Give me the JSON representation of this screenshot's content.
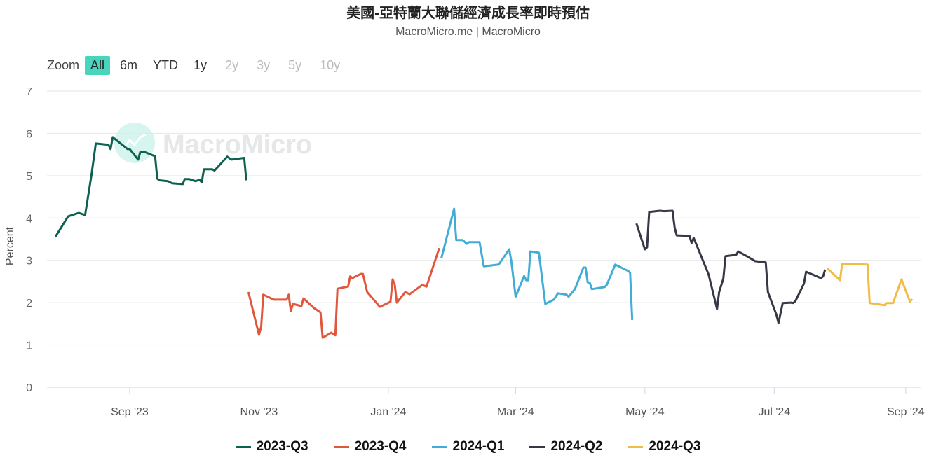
{
  "title": "美國-亞特蘭大聯儲經濟成長率即時預估",
  "subtitle": "MacroMicro.me | MacroMicro",
  "watermark": "MacroMicro",
  "zoom": {
    "label": "Zoom",
    "buttons": [
      {
        "label": "All",
        "state": "selected"
      },
      {
        "label": "6m",
        "state": "enabled"
      },
      {
        "label": "YTD",
        "state": "enabled"
      },
      {
        "label": "1y",
        "state": "enabled"
      },
      {
        "label": "2y",
        "state": "disabled"
      },
      {
        "label": "3y",
        "state": "disabled"
      },
      {
        "label": "5y",
        "state": "disabled"
      },
      {
        "label": "10y",
        "state": "disabled"
      }
    ]
  },
  "chart_data": {
    "type": "line",
    "title": "美國-亞特蘭大聯儲經濟成長率即時預估",
    "ylabel": "Percent",
    "xlabel": "",
    "ylim": [
      0,
      7
    ],
    "yticks": [
      0,
      1,
      2,
      3,
      4,
      5,
      6,
      7
    ],
    "xlim": [
      "2023-07-24",
      "2024-09-08"
    ],
    "xticks": [
      {
        "date": "2023-09-01",
        "label": "Sep '23"
      },
      {
        "date": "2023-11-01",
        "label": "Nov '23"
      },
      {
        "date": "2024-01-01",
        "label": "Jan '24"
      },
      {
        "date": "2024-03-01",
        "label": "Mar '24"
      },
      {
        "date": "2024-05-01",
        "label": "May '24"
      },
      {
        "date": "2024-07-01",
        "label": "Jul '24"
      },
      {
        "date": "2024-09-01",
        "label": "Sep '24"
      }
    ],
    "grid": true,
    "legend": "bottom",
    "series": [
      {
        "name": "2023-Q3",
        "color": "#0e6150",
        "points": [
          [
            "2023-07-28",
            3.56
          ],
          [
            "2023-08-03",
            4.04
          ],
          [
            "2023-08-08",
            4.12
          ],
          [
            "2023-08-11",
            4.07
          ],
          [
            "2023-08-14",
            5.02
          ],
          [
            "2023-08-16",
            5.76
          ],
          [
            "2023-08-22",
            5.73
          ],
          [
            "2023-08-23",
            5.63
          ],
          [
            "2023-08-24",
            5.91
          ],
          [
            "2023-08-31",
            5.63
          ],
          [
            "2023-09-01",
            5.63
          ],
          [
            "2023-09-05",
            5.38
          ],
          [
            "2023-09-06",
            5.56
          ],
          [
            "2023-09-08",
            5.56
          ],
          [
            "2023-09-13",
            5.46
          ],
          [
            "2023-09-14",
            4.93
          ],
          [
            "2023-09-15",
            4.89
          ],
          [
            "2023-09-19",
            4.87
          ],
          [
            "2023-09-21",
            4.82
          ],
          [
            "2023-09-26",
            4.8
          ],
          [
            "2023-09-27",
            4.92
          ],
          [
            "2023-09-29",
            4.92
          ],
          [
            "2023-10-02",
            4.87
          ],
          [
            "2023-10-04",
            4.9
          ],
          [
            "2023-10-05",
            4.84
          ],
          [
            "2023-10-06",
            5.15
          ],
          [
            "2023-10-10",
            5.15
          ],
          [
            "2023-10-11",
            5.12
          ],
          [
            "2023-10-17",
            5.45
          ],
          [
            "2023-10-19",
            5.38
          ],
          [
            "2023-10-25",
            5.42
          ],
          [
            "2023-10-26",
            4.89
          ]
        ]
      },
      {
        "name": "2023-Q4",
        "color": "#e0573d",
        "points": [
          [
            "2023-10-27",
            2.25
          ],
          [
            "2023-11-01",
            1.24
          ],
          [
            "2023-11-02",
            1.43
          ],
          [
            "2023-11-03",
            2.19
          ],
          [
            "2023-11-08",
            2.07
          ],
          [
            "2023-11-14",
            2.07
          ],
          [
            "2023-11-15",
            2.19
          ],
          [
            "2023-11-16",
            1.8
          ],
          [
            "2023-11-17",
            1.97
          ],
          [
            "2023-11-21",
            1.92
          ],
          [
            "2023-11-22",
            2.1
          ],
          [
            "2023-11-27",
            1.87
          ],
          [
            "2023-11-30",
            1.77
          ],
          [
            "2023-12-01",
            1.17
          ],
          [
            "2023-12-05",
            1.29
          ],
          [
            "2023-12-07",
            1.23
          ],
          [
            "2023-12-08",
            2.33
          ],
          [
            "2023-12-13",
            2.38
          ],
          [
            "2023-12-14",
            2.62
          ],
          [
            "2023-12-15",
            2.58
          ],
          [
            "2023-12-19",
            2.68
          ],
          [
            "2023-12-20",
            2.68
          ],
          [
            "2023-12-22",
            2.25
          ],
          [
            "2023-12-28",
            1.9
          ],
          [
            "2024-01-02",
            2.02
          ],
          [
            "2024-01-03",
            2.55
          ],
          [
            "2024-01-04",
            2.43
          ],
          [
            "2024-01-05",
            2.0
          ],
          [
            "2024-01-09",
            2.25
          ],
          [
            "2024-01-11",
            2.2
          ],
          [
            "2024-01-17",
            2.42
          ],
          [
            "2024-01-19",
            2.38
          ],
          [
            "2024-01-25",
            3.29
          ]
        ]
      },
      {
        "name": "2024-Q1",
        "color": "#41acd6",
        "points": [
          [
            "2024-01-26",
            3.05
          ],
          [
            "2024-02-01",
            4.22
          ],
          [
            "2024-02-02",
            3.48
          ],
          [
            "2024-02-05",
            3.48
          ],
          [
            "2024-02-07",
            3.39
          ],
          [
            "2024-02-08",
            3.43
          ],
          [
            "2024-02-13",
            3.43
          ],
          [
            "2024-02-15",
            2.86
          ],
          [
            "2024-02-22",
            2.9
          ],
          [
            "2024-02-27",
            3.26
          ],
          [
            "2024-02-28",
            2.98
          ],
          [
            "2024-03-01",
            2.14
          ],
          [
            "2024-03-05",
            2.63
          ],
          [
            "2024-03-06",
            2.53
          ],
          [
            "2024-03-07",
            2.53
          ],
          [
            "2024-03-08",
            3.21
          ],
          [
            "2024-03-12",
            3.18
          ],
          [
            "2024-03-15",
            1.97
          ],
          [
            "2024-03-19",
            2.07
          ],
          [
            "2024-03-21",
            2.22
          ],
          [
            "2024-03-25",
            2.19
          ],
          [
            "2024-03-26",
            2.14
          ],
          [
            "2024-03-29",
            2.32
          ],
          [
            "2024-04-02",
            2.83
          ],
          [
            "2024-04-03",
            2.83
          ],
          [
            "2024-04-04",
            2.48
          ],
          [
            "2024-04-05",
            2.47
          ],
          [
            "2024-04-06",
            2.32
          ],
          [
            "2024-04-12",
            2.37
          ],
          [
            "2024-04-13",
            2.42
          ],
          [
            "2024-04-17",
            2.9
          ],
          [
            "2024-04-23",
            2.75
          ],
          [
            "2024-04-24",
            2.71
          ],
          [
            "2024-04-25",
            1.59
          ]
        ]
      },
      {
        "name": "2024-Q2",
        "color": "#363846",
        "points": [
          [
            "2024-04-27",
            3.87
          ],
          [
            "2024-05-01",
            3.26
          ],
          [
            "2024-05-02",
            3.31
          ],
          [
            "2024-05-03",
            4.14
          ],
          [
            "2024-05-08",
            4.17
          ],
          [
            "2024-05-10",
            4.16
          ],
          [
            "2024-05-14",
            4.17
          ],
          [
            "2024-05-15",
            3.78
          ],
          [
            "2024-05-16",
            3.59
          ],
          [
            "2024-05-22",
            3.58
          ],
          [
            "2024-05-23",
            3.41
          ],
          [
            "2024-05-24",
            3.53
          ],
          [
            "2024-05-31",
            2.67
          ],
          [
            "2024-06-04",
            1.85
          ],
          [
            "2024-06-05",
            2.25
          ],
          [
            "2024-06-07",
            2.57
          ],
          [
            "2024-06-08",
            3.1
          ],
          [
            "2024-06-13",
            3.13
          ],
          [
            "2024-06-14",
            3.21
          ],
          [
            "2024-06-18",
            3.1
          ],
          [
            "2024-06-22",
            2.98
          ],
          [
            "2024-06-27",
            2.95
          ],
          [
            "2024-06-28",
            2.25
          ],
          [
            "2024-07-02",
            1.72
          ],
          [
            "2024-07-03",
            1.52
          ],
          [
            "2024-07-05",
            1.99
          ],
          [
            "2024-07-09",
            2.0
          ],
          [
            "2024-07-10",
            1.99
          ],
          [
            "2024-07-11",
            2.04
          ],
          [
            "2024-07-15",
            2.45
          ],
          [
            "2024-07-16",
            2.73
          ],
          [
            "2024-07-23",
            2.58
          ],
          [
            "2024-07-24",
            2.62
          ],
          [
            "2024-07-25",
            2.78
          ]
        ]
      },
      {
        "name": "2024-Q3",
        "color": "#f2bb48",
        "points": [
          [
            "2024-07-26",
            2.81
          ],
          [
            "2024-08-01",
            2.53
          ],
          [
            "2024-08-02",
            2.91
          ],
          [
            "2024-08-08",
            2.91
          ],
          [
            "2024-08-14",
            2.9
          ],
          [
            "2024-08-15",
            1.99
          ],
          [
            "2024-08-22",
            1.94
          ],
          [
            "2024-08-23",
            1.99
          ],
          [
            "2024-08-26",
            1.99
          ],
          [
            "2024-08-30",
            2.55
          ],
          [
            "2024-09-03",
            2.02
          ],
          [
            "2024-09-04",
            2.09
          ]
        ]
      }
    ]
  }
}
